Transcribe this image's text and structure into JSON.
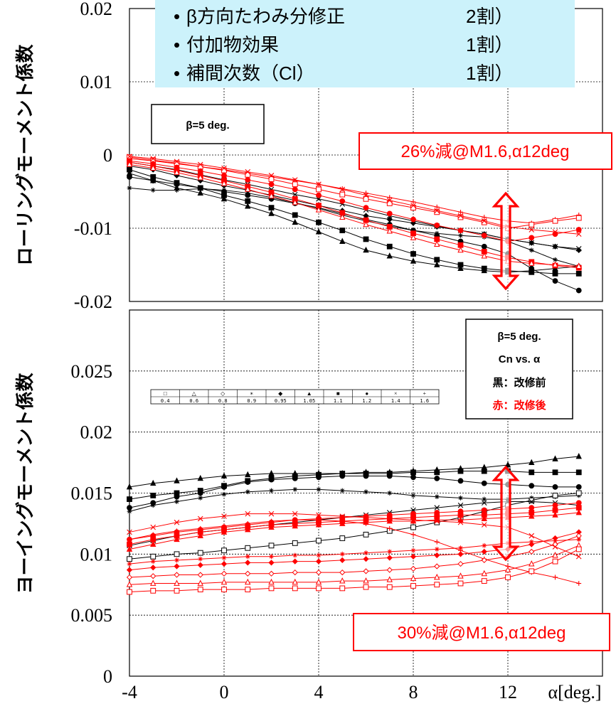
{
  "top_note": {
    "lines": [
      {
        "label": "β方向たわみ分修正",
        "value": "2割）"
      },
      {
        "label": "付加物効果",
        "value": "1割）"
      },
      {
        "label": "補間次数（Cl）",
        "value": "1割）"
      }
    ],
    "bullet": "•",
    "bg": "#ccf2fb"
  },
  "callouts": {
    "top": "26%減@M1.6,α12deg",
    "bottom": "30%減@M1.6,α12deg",
    "color": "#ff0000"
  },
  "legend_box_top": "β=5 deg.",
  "legend_box_bottom": {
    "line1": "β=5 deg.",
    "line2": "Cn vs. α",
    "line3": "黒：改修前",
    "line4": "赤：改修後"
  },
  "mach_legend": {
    "symbols": [
      "□",
      "△",
      "◇",
      "∗",
      "◆",
      "▲",
      "■",
      "●",
      "×",
      "+"
    ],
    "labels": [
      "0.4",
      "0.6",
      "0.8",
      "0.9",
      "0.95",
      "1.05",
      "1.1",
      "1.2",
      "1.4",
      "1.6"
    ]
  },
  "chart_data": [
    {
      "type": "line",
      "ylabel": "ローリングモーメント係数",
      "xlim": [
        -4,
        16
      ],
      "ylim": [
        -0.02,
        0.02
      ],
      "yticks": [
        "0.02",
        "0.01",
        "0",
        "-0.01",
        "-0.02"
      ],
      "x": [
        -4,
        -3,
        -2,
        -1,
        0,
        1,
        2,
        3,
        4,
        5,
        6,
        7,
        8,
        9,
        10,
        11,
        12,
        13,
        14,
        15
      ],
      "series": [
        {
          "color": "#000000",
          "marker": "triangle",
          "values": [
            -0.0025,
            -0.0035,
            -0.0045,
            -0.0052,
            -0.006,
            -0.007,
            -0.008,
            -0.0092,
            -0.0105,
            -0.0118,
            -0.013,
            -0.0138,
            -0.0145,
            -0.015,
            -0.0155,
            -0.0158,
            -0.016,
            -0.0158,
            -0.0155,
            -0.0152
          ]
        },
        {
          "color": "#000000",
          "marker": "square",
          "values": [
            -0.002,
            -0.003,
            -0.0038,
            -0.0045,
            -0.0055,
            -0.0063,
            -0.0072,
            -0.0082,
            -0.0092,
            -0.0103,
            -0.0115,
            -0.0125,
            -0.0135,
            -0.0143,
            -0.015,
            -0.0155,
            -0.0158,
            -0.016,
            -0.0162,
            -0.0162
          ]
        },
        {
          "color": "#000000",
          "marker": "circle",
          "values": [
            -0.003,
            -0.0035,
            -0.004,
            -0.0045,
            -0.005,
            -0.0055,
            -0.006,
            -0.0066,
            -0.0072,
            -0.008,
            -0.0088,
            -0.0095,
            -0.0103,
            -0.011,
            -0.0118,
            -0.0125,
            -0.0135,
            -0.0155,
            -0.0172,
            -0.0185
          ]
        },
        {
          "color": "#000000",
          "marker": "star",
          "values": [
            -0.0045,
            -0.0048,
            -0.0048,
            -0.0046,
            -0.0048,
            -0.0052,
            -0.0058,
            -0.0065,
            -0.0073,
            -0.0082,
            -0.009,
            -0.0097,
            -0.0103,
            -0.0107,
            -0.011,
            -0.0112,
            -0.0118,
            -0.013,
            -0.0143,
            -0.0152
          ]
        },
        {
          "color": "#000000",
          "marker": "diamond",
          "values": [
            -0.0015,
            -0.002,
            -0.0028,
            -0.0035,
            -0.0042,
            -0.0048,
            -0.0055,
            -0.0062,
            -0.0069,
            -0.0076,
            -0.0083,
            -0.0088,
            -0.0093,
            -0.0098,
            -0.0103,
            -0.0108,
            -0.0115,
            -0.012,
            -0.0125,
            -0.013
          ]
        },
        {
          "color": "#000000",
          "marker": "x",
          "values": [
            -0.001,
            -0.0015,
            -0.002,
            -0.0027,
            -0.0034,
            -0.004,
            -0.0047,
            -0.0054,
            -0.006,
            -0.0067,
            -0.0075,
            -0.0083,
            -0.009,
            -0.0097,
            -0.0103,
            -0.0108,
            -0.0115,
            -0.012,
            -0.0125,
            -0.0128
          ]
        },
        {
          "color": "#ff0000",
          "marker": "plus",
          "values": [
            -0.0005,
            -0.0008,
            -0.0012,
            -0.0016,
            -0.002,
            -0.0025,
            -0.003,
            -0.0035,
            -0.004,
            -0.0046,
            -0.0052,
            -0.0058,
            -0.0064,
            -0.0071,
            -0.0078,
            -0.0085,
            -0.009,
            -0.0093,
            -0.0088,
            -0.0082
          ]
        },
        {
          "color": "#ff0000",
          "marker": "square-open",
          "values": [
            -0.0003,
            -0.0007,
            -0.0011,
            -0.0016,
            -0.0021,
            -0.0027,
            -0.0033,
            -0.004,
            -0.0047,
            -0.0054,
            -0.006,
            -0.0066,
            -0.0072,
            -0.0078,
            -0.0085,
            -0.0092,
            -0.01,
            -0.0095,
            -0.009,
            -0.0086
          ]
        },
        {
          "color": "#ff0000",
          "marker": "circle",
          "values": [
            -0.0008,
            -0.0012,
            -0.0017,
            -0.0022,
            -0.0028,
            -0.0034,
            -0.004,
            -0.0047,
            -0.0055,
            -0.0063,
            -0.0072,
            -0.008,
            -0.0088,
            -0.0096,
            -0.0103,
            -0.011,
            -0.0118,
            -0.0113,
            -0.0108,
            -0.0102
          ]
        },
        {
          "color": "#ff0000",
          "marker": "square",
          "values": [
            -0.001,
            -0.0015,
            -0.0021,
            -0.0028,
            -0.0035,
            -0.0043,
            -0.0051,
            -0.006,
            -0.0069,
            -0.0079,
            -0.0089,
            -0.0098,
            -0.0107,
            -0.0115,
            -0.0123,
            -0.0132,
            -0.014,
            -0.0146,
            -0.0151,
            -0.0154
          ]
        },
        {
          "color": "#ff0000",
          "marker": "triangle-open",
          "values": [
            -0.0013,
            -0.0018,
            -0.0024,
            -0.0031,
            -0.0039,
            -0.0047,
            -0.0056,
            -0.0065,
            -0.0075,
            -0.0085,
            -0.0095,
            -0.0104,
            -0.0113,
            -0.0122,
            -0.013,
            -0.0138,
            -0.0145,
            -0.0148,
            -0.015,
            -0.0152
          ]
        },
        {
          "color": "#ff0000",
          "marker": "x",
          "values": [
            -0.0002,
            -0.0005,
            -0.0009,
            -0.0013,
            -0.0018,
            -0.0023,
            -0.0028,
            -0.0034,
            -0.004,
            -0.0047,
            -0.0055,
            -0.0062,
            -0.0069,
            -0.0076,
            -0.0083,
            -0.009,
            -0.0098,
            -0.0102,
            -0.0105,
            -0.0108
          ]
        }
      ]
    },
    {
      "type": "line",
      "ylabel": "ヨーイングモーメント係数",
      "xlim": [
        -4,
        16
      ],
      "ylim": [
        0,
        0.03
      ],
      "yticks": [
        "0.025",
        "0.02",
        "0.015",
        "0.01",
        "0.005",
        "0"
      ],
      "xticks": [
        "-4",
        "0",
        "4",
        "8",
        "12"
      ],
      "xlabel": "α[deg.]",
      "x": [
        -4,
        -3,
        -2,
        -1,
        0,
        1,
        2,
        3,
        4,
        5,
        6,
        7,
        8,
        9,
        10,
        11,
        12,
        13,
        14,
        15
      ],
      "series": [
        {
          "color": "#000000",
          "marker": "triangle",
          "values": [
            0.0155,
            0.0158,
            0.016,
            0.0162,
            0.0164,
            0.0165,
            0.0166,
            0.0166,
            0.0166,
            0.0166,
            0.0167,
            0.0167,
            0.0168,
            0.0169,
            0.017,
            0.0171,
            0.0173,
            0.0175,
            0.0178,
            0.018
          ]
        },
        {
          "color": "#000000",
          "marker": "square",
          "values": [
            0.0145,
            0.0148,
            0.015,
            0.0152,
            0.0156,
            0.016,
            0.0162,
            0.0164,
            0.0165,
            0.0166,
            0.0166,
            0.0166,
            0.0167,
            0.0167,
            0.0168,
            0.0168,
            0.0168,
            0.0167,
            0.0167,
            0.0167
          ]
        },
        {
          "color": "#000000",
          "marker": "circle",
          "values": [
            0.0138,
            0.0142,
            0.0147,
            0.015,
            0.0155,
            0.0159,
            0.0161,
            0.0162,
            0.0163,
            0.0164,
            0.0164,
            0.0164,
            0.0163,
            0.0162,
            0.016,
            0.0158,
            0.0157,
            0.0156,
            0.0155,
            0.0155
          ]
        },
        {
          "color": "#000000",
          "marker": "star",
          "values": [
            0.0135,
            0.014,
            0.0143,
            0.0146,
            0.0149,
            0.0151,
            0.0152,
            0.0153,
            0.0153,
            0.0152,
            0.0151,
            0.015,
            0.0148,
            0.0147,
            0.0146,
            0.0145,
            0.0145,
            0.0146,
            0.0147,
            0.0148
          ]
        },
        {
          "color": "#000000",
          "marker": "square-open",
          "values": [
            0.0096,
            0.0098,
            0.01,
            0.0101,
            0.0103,
            0.0105,
            0.0107,
            0.0109,
            0.0111,
            0.0113,
            0.0116,
            0.0119,
            0.0122,
            0.0126,
            0.013,
            0.0135,
            0.014,
            0.0144,
            0.0148,
            0.015
          ]
        },
        {
          "color": "#000000",
          "marker": "x",
          "values": [
            0.0107,
            0.0111,
            0.0115,
            0.0118,
            0.012,
            0.0122,
            0.0124,
            0.0126,
            0.0128,
            0.013,
            0.0132,
            0.0134,
            0.0136,
            0.0138,
            0.014,
            0.0142,
            0.0143,
            0.0143,
            0.0142,
            0.014
          ]
        },
        {
          "color": "#ff0000",
          "marker": "x",
          "values": [
            0.0118,
            0.0122,
            0.0126,
            0.0129,
            0.0131,
            0.0133,
            0.0133,
            0.0133,
            0.0132,
            0.0131,
            0.013,
            0.0129,
            0.0128,
            0.0127,
            0.0126,
            0.0124,
            0.0122,
            0.0115,
            0.0106,
            0.0098
          ]
        },
        {
          "color": "#ff0000",
          "marker": "circle",
          "values": [
            0.0112,
            0.0115,
            0.0118,
            0.012,
            0.0122,
            0.0124,
            0.0126,
            0.0128,
            0.0129,
            0.013,
            0.0131,
            0.0132,
            0.0133,
            0.0134,
            0.0135,
            0.0136,
            0.0137,
            0.0138,
            0.014,
            0.0142
          ]
        },
        {
          "color": "#ff0000",
          "marker": "square",
          "values": [
            0.0108,
            0.0112,
            0.0115,
            0.0118,
            0.012,
            0.0122,
            0.0124,
            0.0125,
            0.0126,
            0.0127,
            0.0128,
            0.0129,
            0.013,
            0.0131,
            0.0132,
            0.0132,
            0.0133,
            0.0134,
            0.0136,
            0.0138
          ]
        },
        {
          "color": "#ff0000",
          "marker": "triangle",
          "values": [
            0.0104,
            0.0108,
            0.0112,
            0.0115,
            0.0118,
            0.012,
            0.0122,
            0.0123,
            0.0124,
            0.0125,
            0.0126,
            0.0127,
            0.0127,
            0.0128,
            0.0128,
            0.0129,
            0.013,
            0.0131,
            0.0132,
            0.0134
          ]
        },
        {
          "color": "#ff0000",
          "marker": "plus",
          "values": [
            0.0112,
            0.0116,
            0.0119,
            0.0121,
            0.0123,
            0.0125,
            0.0127,
            0.0128,
            0.0128,
            0.0127,
            0.0125,
            0.0121,
            0.0116,
            0.011,
            0.0103,
            0.0096,
            0.009,
            0.0085,
            0.0081,
            0.0076
          ]
        },
        {
          "color": "#ff0000",
          "marker": "star",
          "values": [
            0.0092,
            0.0094,
            0.0095,
            0.0096,
            0.0097,
            0.0098,
            0.0098,
            0.0099,
            0.0099,
            0.01,
            0.0101,
            0.0102,
            0.0103,
            0.0104,
            0.0105,
            0.0107,
            0.0109,
            0.011,
            0.0111,
            0.0112
          ]
        },
        {
          "color": "#ff0000",
          "marker": "diamond",
          "values": [
            0.0087,
            0.0089,
            0.009,
            0.0091,
            0.0092,
            0.0093,
            0.0093,
            0.0094,
            0.0094,
            0.0095,
            0.0096,
            0.0097,
            0.0098,
            0.0099,
            0.01,
            0.0102,
            0.0104,
            0.0108,
            0.0113,
            0.0118
          ]
        },
        {
          "color": "#ff0000",
          "marker": "diamond-open",
          "values": [
            0.0081,
            0.0082,
            0.0083,
            0.0083,
            0.0084,
            0.0084,
            0.0084,
            0.0085,
            0.0085,
            0.0085,
            0.0086,
            0.0087,
            0.0088,
            0.009,
            0.0092,
            0.0095,
            0.0098,
            0.0102,
            0.0108,
            0.0115
          ]
        },
        {
          "color": "#ff0000",
          "marker": "triangle-open",
          "values": [
            0.0075,
            0.0076,
            0.0076,
            0.0076,
            0.0077,
            0.0077,
            0.0077,
            0.0077,
            0.0077,
            0.0078,
            0.0078,
            0.0079,
            0.008,
            0.0081,
            0.0082,
            0.0084,
            0.0087,
            0.0092,
            0.0099,
            0.0107
          ]
        },
        {
          "color": "#ff0000",
          "marker": "square-open",
          "values": [
            0.0069,
            0.007,
            0.007,
            0.0071,
            0.0071,
            0.0071,
            0.0072,
            0.0072,
            0.0072,
            0.0072,
            0.0073,
            0.0073,
            0.0074,
            0.0075,
            0.0076,
            0.0078,
            0.0081,
            0.0086,
            0.0094,
            0.0104
          ]
        }
      ]
    }
  ]
}
